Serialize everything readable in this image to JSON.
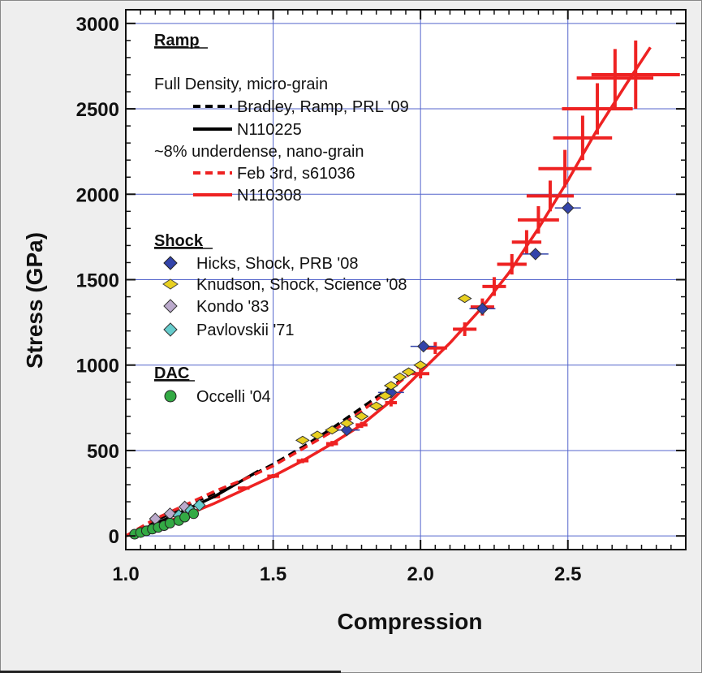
{
  "chart_data": {
    "type": "scatter",
    "title": "",
    "xlabel": "Compression",
    "ylabel": "Stress (GPa)",
    "xlim": [
      1.0,
      2.9
    ],
    "ylim": [
      -80,
      3080
    ],
    "x_ticks": [
      "1.0",
      "1.5",
      "2.0",
      "2.5"
    ],
    "y_ticks": [
      "0",
      "500",
      "1000",
      "1500",
      "2000",
      "2500",
      "3000"
    ],
    "grid": true,
    "legend_position": "top-left",
    "legend_groups": [
      {
        "heading": "Ramp",
        "entries": []
      },
      {
        "heading": "",
        "text": "Full Density, micro-grain",
        "entries": [
          "Bradley, Ramp, PRL '09",
          "N110225"
        ]
      },
      {
        "heading": "",
        "text": "~8% underdense, nano-grain",
        "entries": [
          "Feb 3rd, s61036",
          "N110308"
        ]
      },
      {
        "heading": "Shock",
        "entries": [
          "Hicks, Shock, PRB '08",
          "Knudson, Shock, Science '08",
          "Kondo '83",
          "Pavlovskii '71"
        ]
      },
      {
        "heading": "DAC",
        "entries": [
          "Occelli '04"
        ]
      }
    ],
    "series": [
      {
        "name": "Bradley, Ramp, PRL '09",
        "style": "dashed",
        "color": "#000000",
        "x": [
          1.0,
          1.1,
          1.2,
          1.3,
          1.4,
          1.5,
          1.6,
          1.7,
          1.8,
          1.9,
          2.0
        ],
        "y": [
          0,
          90,
          170,
          250,
          330,
          420,
          520,
          630,
          750,
          870,
          1000
        ]
      },
      {
        "name": "N110225",
        "style": "solid",
        "color": "#000000",
        "x": [
          1.0,
          1.1,
          1.2,
          1.3,
          1.4,
          1.45
        ],
        "y": [
          0,
          70,
          150,
          230,
          330,
          380
        ]
      },
      {
        "name": "Feb 3rd, s61036",
        "style": "dashed",
        "color": "#ee2222",
        "x": [
          1.0,
          1.1,
          1.2,
          1.3,
          1.4,
          1.5,
          1.6,
          1.7,
          1.8,
          1.9,
          2.0
        ],
        "y": [
          0,
          100,
          180,
          260,
          330,
          410,
          510,
          610,
          730,
          860,
          1000
        ]
      },
      {
        "name": "N110308",
        "style": "solid",
        "color": "#ee2222",
        "x": [
          1.0,
          1.1,
          1.2,
          1.3,
          1.4,
          1.5,
          1.6,
          1.7,
          1.8,
          1.9,
          2.0,
          2.1,
          2.2,
          2.3,
          2.4,
          2.5,
          2.6,
          2.7,
          2.78
        ],
        "y": [
          0,
          60,
          120,
          190,
          270,
          350,
          440,
          540,
          650,
          790,
          960,
          1130,
          1320,
          1540,
          1800,
          2080,
          2380,
          2650,
          2860
        ]
      },
      {
        "name": "N110308 error bars",
        "color": "#ee2222",
        "x": [
          1.3,
          1.4,
          1.5,
          1.6,
          1.7,
          1.8,
          1.9,
          2.0,
          2.05,
          2.15,
          2.21,
          2.25,
          2.31,
          2.36,
          2.4,
          2.44,
          2.49,
          2.55,
          2.6,
          2.66,
          2.73
        ],
        "y": [
          230,
          280,
          350,
          440,
          540,
          650,
          780,
          950,
          1100,
          1210,
          1340,
          1460,
          1590,
          1720,
          1850,
          1990,
          2150,
          2330,
          2500,
          2680,
          2700
        ],
        "xerr": [
          0.02,
          0.02,
          0.02,
          0.02,
          0.02,
          0.02,
          0.02,
          0.03,
          0.04,
          0.04,
          0.04,
          0.04,
          0.05,
          0.05,
          0.07,
          0.08,
          0.09,
          0.1,
          0.12,
          0.13,
          0.15
        ],
        "yerr": [
          10,
          10,
          12,
          14,
          16,
          18,
          22,
          28,
          35,
          40,
          50,
          55,
          60,
          70,
          80,
          90,
          110,
          130,
          150,
          170,
          200
        ]
      },
      {
        "name": "Hicks, Shock, PRB '08",
        "marker": "diamond",
        "color": "#3344aa",
        "x": [
          1.75,
          1.9,
          2.01,
          2.21,
          2.39,
          2.5
        ],
        "y": [
          620,
          840,
          1110,
          1330,
          1650,
          1920
        ]
      },
      {
        "name": "Knudson, Shock, Science '08",
        "marker": "diamond",
        "color": "#e8d020",
        "x": [
          1.6,
          1.65,
          1.7,
          1.75,
          1.8,
          1.85,
          1.88,
          1.9,
          1.93,
          1.96,
          2.0,
          2.15
        ],
        "y": [
          560,
          590,
          620,
          660,
          700,
          760,
          820,
          880,
          930,
          960,
          1000,
          1390
        ]
      },
      {
        "name": "Kondo '83",
        "marker": "diamond",
        "color": "#bbaacc",
        "x": [
          1.1,
          1.15,
          1.2
        ],
        "y": [
          100,
          130,
          170
        ]
      },
      {
        "name": "Pavlovskii '71",
        "marker": "diamond",
        "color": "#66cccc",
        "x": [
          1.18,
          1.22,
          1.25
        ],
        "y": [
          120,
          150,
          180
        ]
      },
      {
        "name": "Occelli '04",
        "marker": "circle",
        "color": "#33aa44",
        "x": [
          1.03,
          1.05,
          1.07,
          1.09,
          1.11,
          1.13,
          1.15,
          1.18,
          1.2,
          1.23
        ],
        "y": [
          10,
          20,
          30,
          40,
          50,
          60,
          75,
          90,
          110,
          130
        ]
      }
    ]
  }
}
